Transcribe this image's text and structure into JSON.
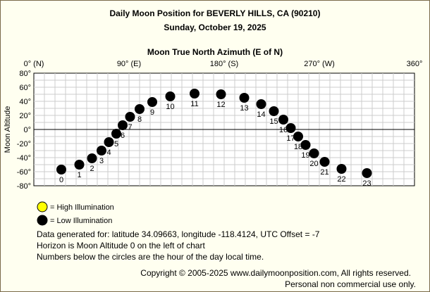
{
  "chart_data": {
    "type": "scatter",
    "title": "Daily Moon Position for BEVERLY HILLS, CA (90210)",
    "subtitle": "Sunday, October 19, 2025",
    "xlabel": "Moon True North Azimuth (E of N)",
    "ylabel": "Moon Altitude",
    "xlim": [
      0,
      360
    ],
    "ylim": [
      -80,
      80
    ],
    "x_ticks": [
      {
        "value": 0,
        "label": "0° (N)"
      },
      {
        "value": 90,
        "label": "90° (E)"
      },
      {
        "value": 180,
        "label": "180° (S)"
      },
      {
        "value": 270,
        "label": "270° (W)"
      },
      {
        "value": 360,
        "label": "360°"
      }
    ],
    "y_ticks": [
      {
        "value": 80,
        "label": "80°"
      },
      {
        "value": 60,
        "label": "60°"
      },
      {
        "value": 40,
        "label": "40°"
      },
      {
        "value": 20,
        "label": "20°"
      },
      {
        "value": 0,
        "label": "0°"
      },
      {
        "value": -20,
        "label": "-20°"
      },
      {
        "value": -40,
        "label": "-40°"
      },
      {
        "value": -60,
        "label": "-60°"
      },
      {
        "value": -80,
        "label": "-80°"
      }
    ],
    "grid": true,
    "series": [
      {
        "name": "Low Illumination",
        "color": "#000000",
        "points": [
          {
            "hour": "0",
            "x": 26,
            "y": -57
          },
          {
            "hour": "1",
            "x": 43,
            "y": -50
          },
          {
            "hour": "2",
            "x": 55,
            "y": -41
          },
          {
            "hour": "3",
            "x": 64,
            "y": -30
          },
          {
            "hour": "4",
            "x": 71,
            "y": -18
          },
          {
            "hour": "5",
            "x": 78,
            "y": -6
          },
          {
            "hour": "6",
            "x": 84,
            "y": 6
          },
          {
            "hour": "7",
            "x": 91,
            "y": 18
          },
          {
            "hour": "8",
            "x": 100,
            "y": 29
          },
          {
            "hour": "9",
            "x": 112,
            "y": 39
          },
          {
            "hour": "10",
            "x": 129,
            "y": 47
          },
          {
            "hour": "11",
            "x": 152,
            "y": 51
          },
          {
            "hour": "12",
            "x": 177,
            "y": 50
          },
          {
            "hour": "13",
            "x": 199,
            "y": 45
          },
          {
            "hour": "14",
            "x": 215,
            "y": 36
          },
          {
            "hour": "15",
            "x": 227,
            "y": 26
          },
          {
            "hour": "16",
            "x": 236,
            "y": 14
          },
          {
            "hour": "17",
            "x": 243,
            "y": 2
          },
          {
            "hour": "18",
            "x": 250,
            "y": -10
          },
          {
            "hour": "19",
            "x": 257,
            "y": -22
          },
          {
            "hour": "20",
            "x": 265,
            "y": -34
          },
          {
            "hour": "21",
            "x": 275,
            "y": -46
          },
          {
            "hour": "22",
            "x": 291,
            "y": -56
          },
          {
            "hour": "23",
            "x": 315,
            "y": -62
          }
        ]
      }
    ],
    "legend": {
      "placement": "bottom-left",
      "items": [
        {
          "label": "= High Illumination",
          "color": "#ffff00"
        },
        {
          "label": "= Low Illumination",
          "color": "#000000"
        }
      ]
    }
  },
  "notes": [
    "Data generated for: latitude 34.09663, longitude -118.4124, UTC Offset = -7",
    "Horizon is Moon Altitude 0 on the left of chart",
    "Numbers below the circles are the hour of the day local time."
  ],
  "copyright": [
    "Copyright © 2005-2025 www.dailymoonposition.com, All rights reserved.",
    "Personal non commercial use only."
  ],
  "colors": {
    "background": "#fffff0",
    "grid": "#cccccc",
    "horizon": "#000000",
    "marker": "#000000",
    "high_illumination": "#ffff00"
  }
}
